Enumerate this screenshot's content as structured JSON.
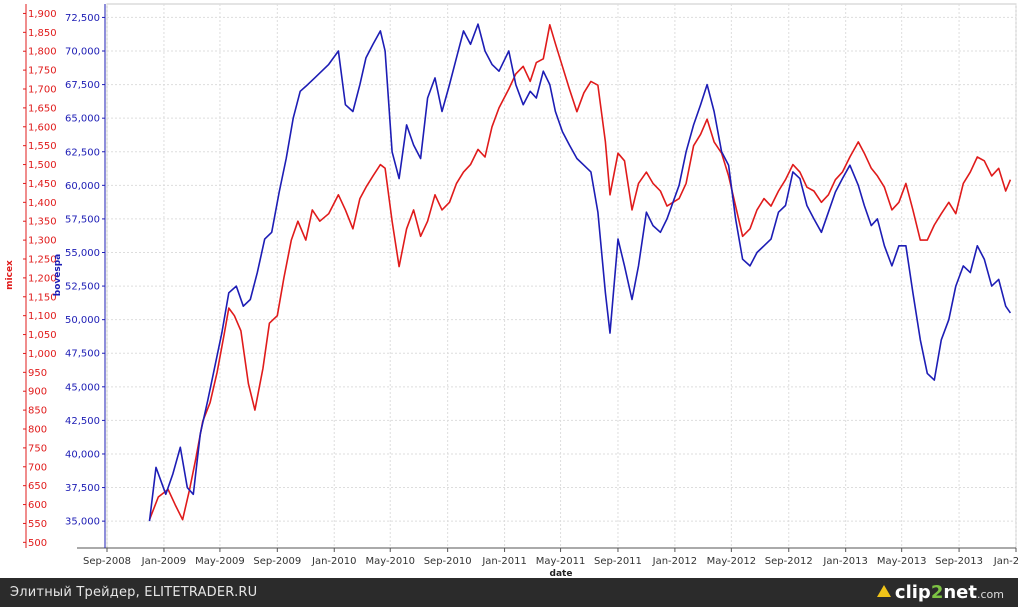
{
  "chart_data": {
    "type": "line",
    "xlabel": "date",
    "x_ticks": [
      "Sep-2008",
      "Jan-2009",
      "May-2009",
      "Sep-2009",
      "Jan-2010",
      "May-2010",
      "Sep-2010",
      "Jan-2011",
      "May-2011",
      "Sep-2011",
      "Jan-2012",
      "May-2012",
      "Sep-2012",
      "Jan-2013",
      "May-2013",
      "Sep-2013",
      "Jan-2014"
    ],
    "x_range": [
      "2008-09-01",
      "2014-01-01"
    ],
    "left_axis": {
      "label": "micex",
      "color": "#e01b1b",
      "ylim": [
        485,
        1925
      ],
      "ticks": [
        "500",
        "550",
        "600",
        "650",
        "700",
        "750",
        "800",
        "850",
        "900",
        "950",
        "1,000",
        "1,050",
        "1,100",
        "1,150",
        "1,200",
        "1,250",
        "1,300",
        "1,350",
        "1,400",
        "1,450",
        "1,500",
        "1,550",
        "1,600",
        "1,650",
        "1,700",
        "1,750",
        "1,800",
        "1,850",
        "1,900"
      ]
    },
    "right_axis": {
      "label": "bovespa",
      "color": "#1d1db5",
      "ylim": [
        33000,
        73500
      ],
      "ticks": [
        "35,000",
        "37,500",
        "40,000",
        "42,500",
        "45,000",
        "47,500",
        "50,000",
        "52,500",
        "55,000",
        "57,500",
        "60,000",
        "62,500",
        "65,000",
        "67,500",
        "70,000",
        "72,500"
      ]
    },
    "grid": true,
    "series": [
      {
        "name": "micex",
        "axis": "left",
        "color": "#e01b1b",
        "points": [
          [
            "2008-12-01",
            560
          ],
          [
            "2008-12-20",
            620
          ],
          [
            "2009-01-10",
            640
          ],
          [
            "2009-01-25",
            600
          ],
          [
            "2009-02-10",
            560
          ],
          [
            "2009-02-25",
            640
          ],
          [
            "2009-03-10",
            720
          ],
          [
            "2009-03-25",
            820
          ],
          [
            "2009-04-10",
            870
          ],
          [
            "2009-04-25",
            950
          ],
          [
            "2009-05-10",
            1050
          ],
          [
            "2009-05-20",
            1120
          ],
          [
            "2009-06-01",
            1100
          ],
          [
            "2009-06-15",
            1060
          ],
          [
            "2009-07-01",
            920
          ],
          [
            "2009-07-15",
            850
          ],
          [
            "2009-08-01",
            960
          ],
          [
            "2009-08-15",
            1080
          ],
          [
            "2009-09-01",
            1100
          ],
          [
            "2009-09-15",
            1200
          ],
          [
            "2009-10-01",
            1300
          ],
          [
            "2009-10-15",
            1350
          ],
          [
            "2009-11-01",
            1300
          ],
          [
            "2009-11-15",
            1380
          ],
          [
            "2009-12-01",
            1350
          ],
          [
            "2009-12-20",
            1370
          ],
          [
            "2010-01-10",
            1420
          ],
          [
            "2010-01-25",
            1380
          ],
          [
            "2010-02-10",
            1330
          ],
          [
            "2010-02-25",
            1410
          ],
          [
            "2010-03-10",
            1440
          ],
          [
            "2010-03-25",
            1470
          ],
          [
            "2010-04-10",
            1500
          ],
          [
            "2010-04-20",
            1490
          ],
          [
            "2010-05-05",
            1350
          ],
          [
            "2010-05-20",
            1230
          ],
          [
            "2010-06-05",
            1330
          ],
          [
            "2010-06-20",
            1380
          ],
          [
            "2010-07-05",
            1310
          ],
          [
            "2010-07-20",
            1350
          ],
          [
            "2010-08-05",
            1420
          ],
          [
            "2010-08-20",
            1380
          ],
          [
            "2010-09-05",
            1400
          ],
          [
            "2010-09-20",
            1450
          ],
          [
            "2010-10-05",
            1480
          ],
          [
            "2010-10-20",
            1500
          ],
          [
            "2010-11-05",
            1540
          ],
          [
            "2010-11-20",
            1520
          ],
          [
            "2010-12-05",
            1600
          ],
          [
            "2010-12-20",
            1650
          ],
          [
            "2011-01-10",
            1700
          ],
          [
            "2011-01-25",
            1740
          ],
          [
            "2011-02-10",
            1760
          ],
          [
            "2011-02-25",
            1720
          ],
          [
            "2011-03-10",
            1770
          ],
          [
            "2011-03-25",
            1780
          ],
          [
            "2011-04-08",
            1870
          ],
          [
            "2011-04-20",
            1820
          ],
          [
            "2011-05-05",
            1760
          ],
          [
            "2011-05-20",
            1700
          ],
          [
            "2011-06-05",
            1640
          ],
          [
            "2011-06-20",
            1690
          ],
          [
            "2011-07-05",
            1720
          ],
          [
            "2011-07-20",
            1710
          ],
          [
            "2011-08-05",
            1560
          ],
          [
            "2011-08-15",
            1420
          ],
          [
            "2011-09-01",
            1530
          ],
          [
            "2011-09-15",
            1510
          ],
          [
            "2011-10-01",
            1380
          ],
          [
            "2011-10-15",
            1450
          ],
          [
            "2011-11-01",
            1480
          ],
          [
            "2011-11-15",
            1450
          ],
          [
            "2011-12-01",
            1430
          ],
          [
            "2011-12-15",
            1390
          ],
          [
            "2012-01-10",
            1410
          ],
          [
            "2012-01-25",
            1450
          ],
          [
            "2012-02-10",
            1550
          ],
          [
            "2012-02-25",
            1580
          ],
          [
            "2012-03-10",
            1620
          ],
          [
            "2012-03-25",
            1560
          ],
          [
            "2012-04-10",
            1530
          ],
          [
            "2012-04-25",
            1470
          ],
          [
            "2012-05-10",
            1390
          ],
          [
            "2012-05-25",
            1310
          ],
          [
            "2012-06-10",
            1330
          ],
          [
            "2012-06-25",
            1380
          ],
          [
            "2012-07-10",
            1410
          ],
          [
            "2012-07-25",
            1390
          ],
          [
            "2012-08-10",
            1430
          ],
          [
            "2012-08-25",
            1460
          ],
          [
            "2012-09-10",
            1500
          ],
          [
            "2012-09-25",
            1480
          ],
          [
            "2012-10-10",
            1440
          ],
          [
            "2012-10-25",
            1430
          ],
          [
            "2012-11-10",
            1400
          ],
          [
            "2012-11-25",
            1420
          ],
          [
            "2012-12-10",
            1460
          ],
          [
            "2012-12-25",
            1480
          ],
          [
            "2013-01-10",
            1520
          ],
          [
            "2013-01-28",
            1560
          ],
          [
            "2013-02-10",
            1530
          ],
          [
            "2013-02-25",
            1490
          ],
          [
            "2013-03-10",
            1470
          ],
          [
            "2013-03-25",
            1440
          ],
          [
            "2013-04-10",
            1380
          ],
          [
            "2013-04-25",
            1400
          ],
          [
            "2013-05-10",
            1450
          ],
          [
            "2013-05-25",
            1380
          ],
          [
            "2013-06-10",
            1300
          ],
          [
            "2013-06-25",
            1300
          ],
          [
            "2013-07-10",
            1340
          ],
          [
            "2013-07-25",
            1370
          ],
          [
            "2013-08-10",
            1400
          ],
          [
            "2013-08-25",
            1370
          ],
          [
            "2013-09-10",
            1450
          ],
          [
            "2013-09-25",
            1480
          ],
          [
            "2013-10-10",
            1520
          ],
          [
            "2013-10-25",
            1510
          ],
          [
            "2013-11-10",
            1470
          ],
          [
            "2013-11-25",
            1490
          ],
          [
            "2013-12-10",
            1430
          ],
          [
            "2013-12-20",
            1460
          ]
        ]
      },
      {
        "name": "bovespa",
        "axis": "right",
        "color": "#1d1db5",
        "points": [
          [
            "2008-12-01",
            35000
          ],
          [
            "2008-12-15",
            39000
          ],
          [
            "2009-01-05",
            37000
          ],
          [
            "2009-01-20",
            38500
          ],
          [
            "2009-02-05",
            40500
          ],
          [
            "2009-02-20",
            37500
          ],
          [
            "2009-03-05",
            37000
          ],
          [
            "2009-03-20",
            41500
          ],
          [
            "2009-04-05",
            44000
          ],
          [
            "2009-04-20",
            46500
          ],
          [
            "2009-05-05",
            49000
          ],
          [
            "2009-05-20",
            52000
          ],
          [
            "2009-06-05",
            52500
          ],
          [
            "2009-06-20",
            51000
          ],
          [
            "2009-07-05",
            51500
          ],
          [
            "2009-07-20",
            53500
          ],
          [
            "2009-08-05",
            56000
          ],
          [
            "2009-08-20",
            56500
          ],
          [
            "2009-09-05",
            59500
          ],
          [
            "2009-09-20",
            62000
          ],
          [
            "2009-10-05",
            65000
          ],
          [
            "2009-10-20",
            67000
          ],
          [
            "2009-11-05",
            67500
          ],
          [
            "2009-11-20",
            68000
          ],
          [
            "2009-12-05",
            68500
          ],
          [
            "2009-12-20",
            69000
          ],
          [
            "2010-01-10",
            70000
          ],
          [
            "2010-01-25",
            66000
          ],
          [
            "2010-02-10",
            65500
          ],
          [
            "2010-02-25",
            67500
          ],
          [
            "2010-03-10",
            69500
          ],
          [
            "2010-03-25",
            70500
          ],
          [
            "2010-04-10",
            71500
          ],
          [
            "2010-04-20",
            70000
          ],
          [
            "2010-05-05",
            62500
          ],
          [
            "2010-05-20",
            60500
          ],
          [
            "2010-06-05",
            64500
          ],
          [
            "2010-06-20",
            63000
          ],
          [
            "2010-07-05",
            62000
          ],
          [
            "2010-07-20",
            66500
          ],
          [
            "2010-08-05",
            68000
          ],
          [
            "2010-08-20",
            65500
          ],
          [
            "2010-09-05",
            67500
          ],
          [
            "2010-09-20",
            69500
          ],
          [
            "2010-10-05",
            71500
          ],
          [
            "2010-10-20",
            70500
          ],
          [
            "2010-11-05",
            72000
          ],
          [
            "2010-11-20",
            70000
          ],
          [
            "2010-12-05",
            69000
          ],
          [
            "2010-12-20",
            68500
          ],
          [
            "2011-01-10",
            70000
          ],
          [
            "2011-01-25",
            67500
          ],
          [
            "2011-02-10",
            66000
          ],
          [
            "2011-02-25",
            67000
          ],
          [
            "2011-03-10",
            66500
          ],
          [
            "2011-03-25",
            68500
          ],
          [
            "2011-04-08",
            67500
          ],
          [
            "2011-04-20",
            65500
          ],
          [
            "2011-05-05",
            64000
          ],
          [
            "2011-05-20",
            63000
          ],
          [
            "2011-06-05",
            62000
          ],
          [
            "2011-06-20",
            61500
          ],
          [
            "2011-07-05",
            61000
          ],
          [
            "2011-07-20",
            58000
          ],
          [
            "2011-08-05",
            52000
          ],
          [
            "2011-08-15",
            49000
          ],
          [
            "2011-09-01",
            56000
          ],
          [
            "2011-09-15",
            54000
          ],
          [
            "2011-10-01",
            51500
          ],
          [
            "2011-10-15",
            54000
          ],
          [
            "2011-11-01",
            58000
          ],
          [
            "2011-11-15",
            57000
          ],
          [
            "2011-12-01",
            56500
          ],
          [
            "2011-12-15",
            57500
          ],
          [
            "2012-01-10",
            60000
          ],
          [
            "2012-01-25",
            62500
          ],
          [
            "2012-02-10",
            64500
          ],
          [
            "2012-02-25",
            66000
          ],
          [
            "2012-03-10",
            67500
          ],
          [
            "2012-03-25",
            65500
          ],
          [
            "2012-04-10",
            62500
          ],
          [
            "2012-04-25",
            61500
          ],
          [
            "2012-05-10",
            57500
          ],
          [
            "2012-05-25",
            54500
          ],
          [
            "2012-06-10",
            54000
          ],
          [
            "2012-06-25",
            55000
          ],
          [
            "2012-07-10",
            55500
          ],
          [
            "2012-07-25",
            56000
          ],
          [
            "2012-08-10",
            58000
          ],
          [
            "2012-08-25",
            58500
          ],
          [
            "2012-09-10",
            61000
          ],
          [
            "2012-09-25",
            60500
          ],
          [
            "2012-10-10",
            58500
          ],
          [
            "2012-10-25",
            57500
          ],
          [
            "2012-11-10",
            56500
          ],
          [
            "2012-11-25",
            58000
          ],
          [
            "2012-12-10",
            59500
          ],
          [
            "2012-12-25",
            60500
          ],
          [
            "2013-01-10",
            61500
          ],
          [
            "2013-01-28",
            60000
          ],
          [
            "2013-02-10",
            58500
          ],
          [
            "2013-02-25",
            57000
          ],
          [
            "2013-03-10",
            57500
          ],
          [
            "2013-03-25",
            55500
          ],
          [
            "2013-04-10",
            54000
          ],
          [
            "2013-04-25",
            55500
          ],
          [
            "2013-05-10",
            55500
          ],
          [
            "2013-05-25",
            52000
          ],
          [
            "2013-06-10",
            48500
          ],
          [
            "2013-06-25",
            46000
          ],
          [
            "2013-07-10",
            45500
          ],
          [
            "2013-07-25",
            48500
          ],
          [
            "2013-08-10",
            50000
          ],
          [
            "2013-08-25",
            52500
          ],
          [
            "2013-09-10",
            54000
          ],
          [
            "2013-09-25",
            53500
          ],
          [
            "2013-10-10",
            55500
          ],
          [
            "2013-10-25",
            54500
          ],
          [
            "2013-11-10",
            52500
          ],
          [
            "2013-11-25",
            53000
          ],
          [
            "2013-12-10",
            51000
          ],
          [
            "2013-12-20",
            50500
          ]
        ]
      }
    ]
  },
  "footer": {
    "caption": "Элитный Трейдер, ELITETRADER.RU",
    "logo_main": "clip",
    "logo_num": "2",
    "logo_rest": "net",
    "logo_tld": ".com"
  }
}
